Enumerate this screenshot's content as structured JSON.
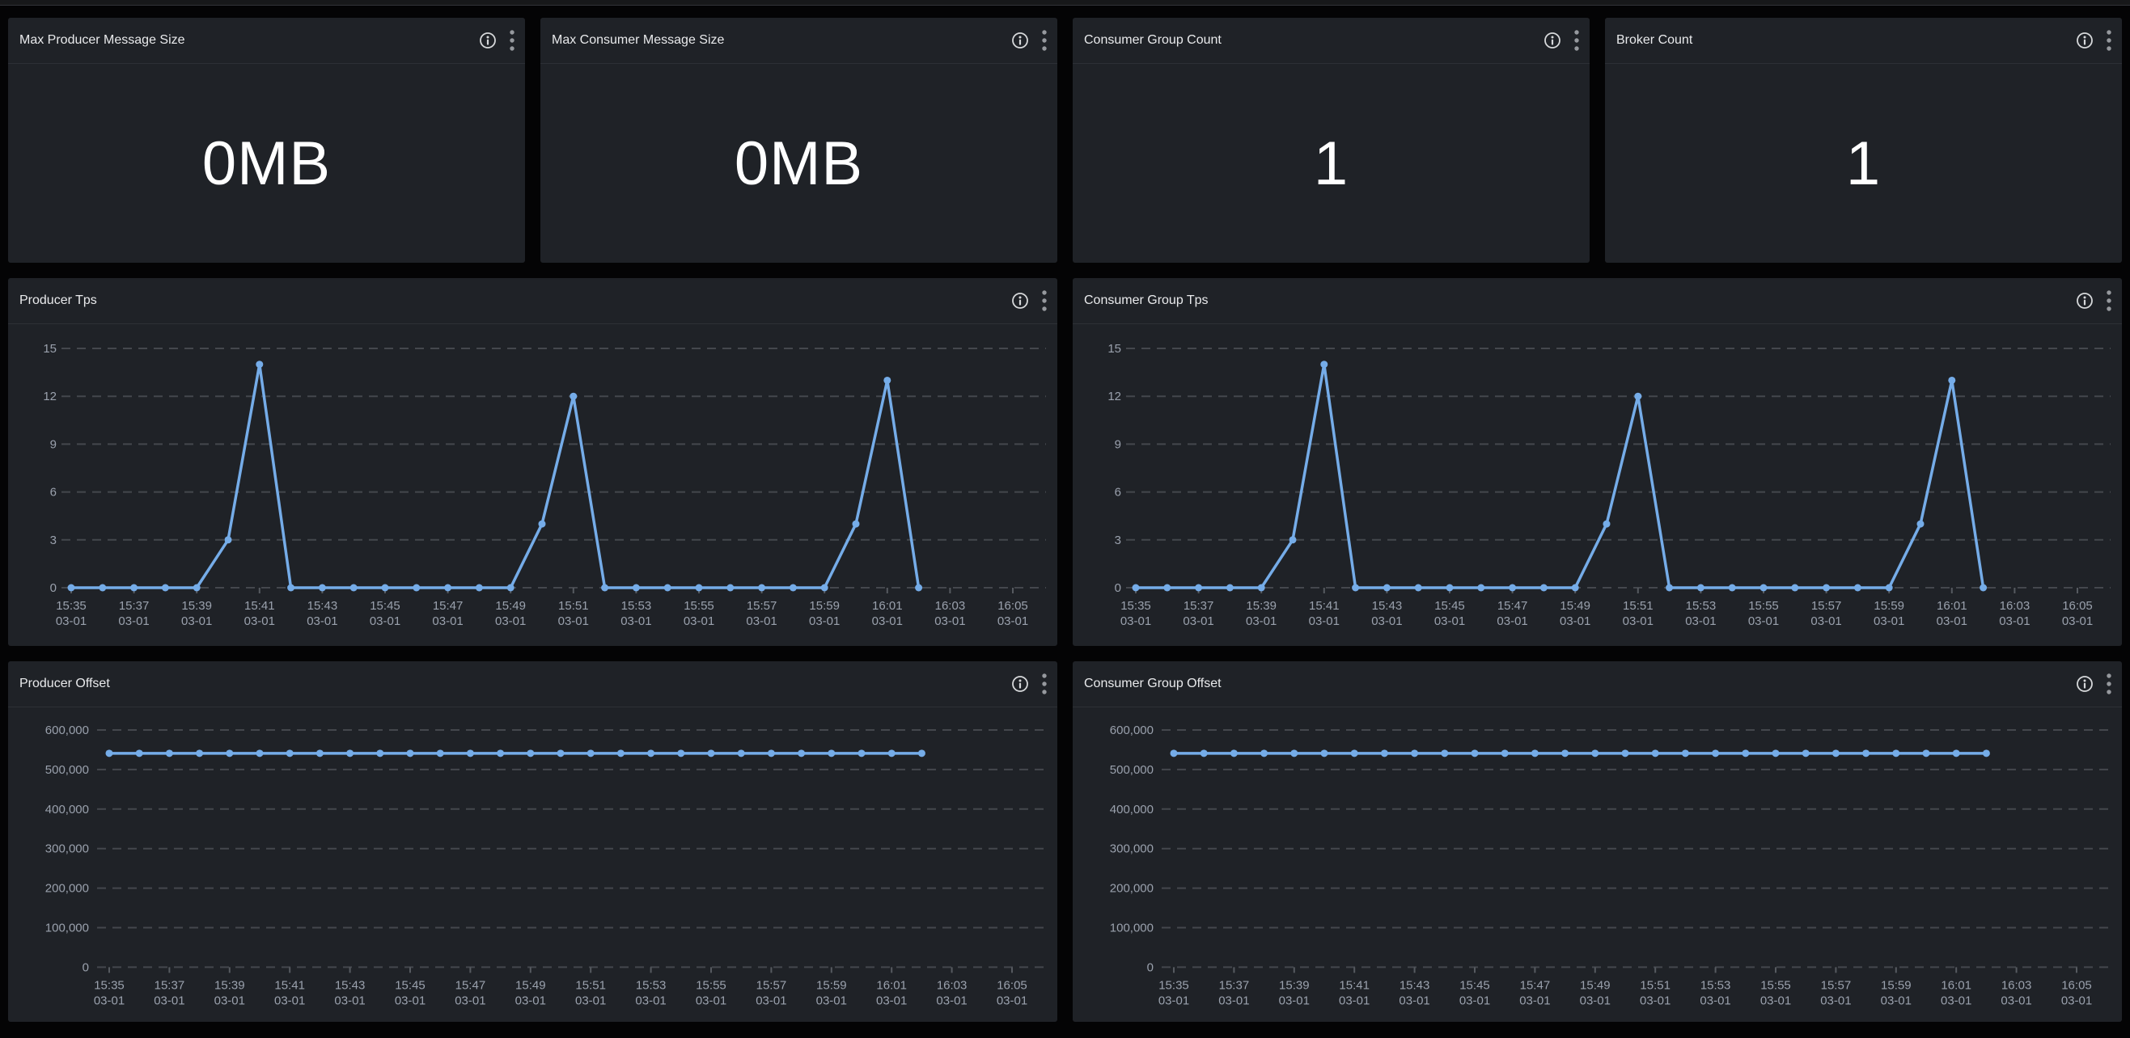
{
  "colors": {
    "page_bg": "#040405",
    "panel_bg": "#1f2227",
    "accent_line": "#75ace8",
    "grid_line": "#44474d",
    "axis_text": "#9aa1ad",
    "title_text": "#e9eaec",
    "divider": "#2d3036",
    "info_icon": "#d6d8da",
    "kebab_icon": "#96999e",
    "tick_mark": "#565a60",
    "stat_text": "#ffffff"
  },
  "stat_panels": [
    {
      "id": "max-producer-message-size",
      "title": "Max Producer Message Size",
      "value": "0MB"
    },
    {
      "id": "max-consumer-message-size",
      "title": "Max Consumer Message Size",
      "value": "0MB"
    },
    {
      "id": "consumer-group-count",
      "title": "Consumer Group Count",
      "value": "1"
    },
    {
      "id": "broker-count",
      "title": "Broker Count",
      "value": "1"
    }
  ],
  "time_axis": {
    "tick_labels": [
      "15:35",
      "15:37",
      "15:39",
      "15:41",
      "15:43",
      "15:45",
      "15:47",
      "15:49",
      "15:51",
      "15:53",
      "15:55",
      "15:57",
      "15:59",
      "16:01",
      "16:03",
      "16:05"
    ],
    "date_label": "03-01"
  },
  "sample_times": [
    "15:35",
    "15:36",
    "15:37",
    "15:38",
    "15:39",
    "15:40",
    "15:41",
    "15:42",
    "15:43",
    "15:44",
    "15:45",
    "15:46",
    "15:47",
    "15:48",
    "15:49",
    "15:50",
    "15:51",
    "15:52",
    "15:53",
    "15:54",
    "15:55",
    "15:56",
    "15:57",
    "15:58",
    "15:59",
    "16:00",
    "16:01",
    "16:02"
  ],
  "chart_data": [
    {
      "id": "producer-tps",
      "title": "Producer Tps",
      "type": "line",
      "date": "03-01",
      "yticks": [
        0,
        3,
        6,
        9,
        12,
        15
      ],
      "ytick_labels": [
        "0",
        "3",
        "6",
        "9",
        "12",
        "15"
      ],
      "ylim": [
        0,
        16.5
      ],
      "grid": "dashed-horizontal",
      "values": [
        0,
        0,
        0,
        0,
        0,
        3,
        14,
        0,
        0,
        0,
        0,
        0,
        0,
        0,
        0,
        4,
        12,
        0,
        0,
        0,
        0,
        0,
        0,
        0,
        0,
        4,
        13,
        0
      ]
    },
    {
      "id": "consumer-group-tps",
      "title": "Consumer Group Tps",
      "type": "line",
      "date": "03-01",
      "yticks": [
        0,
        3,
        6,
        9,
        12,
        15
      ],
      "ytick_labels": [
        "0",
        "3",
        "6",
        "9",
        "12",
        "15"
      ],
      "ylim": [
        0,
        16.5
      ],
      "grid": "dashed-horizontal",
      "values": [
        0,
        0,
        0,
        0,
        0,
        3,
        14,
        0,
        0,
        0,
        0,
        0,
        0,
        0,
        0,
        4,
        12,
        0,
        0,
        0,
        0,
        0,
        0,
        0,
        0,
        4,
        13,
        0
      ]
    },
    {
      "id": "producer-offset",
      "title": "Producer Offset",
      "type": "line",
      "date": "03-01",
      "yticks": [
        0,
        100000,
        200000,
        300000,
        400000,
        500000,
        600000
      ],
      "ytick_labels": [
        "0",
        "100,000",
        "200,000",
        "300,000",
        "400,000",
        "500,000",
        "600,000"
      ],
      "ylim": [
        0,
        640000
      ],
      "grid": "dashed-horizontal",
      "values": [
        541000,
        541000,
        541000,
        541000,
        541000,
        541000,
        541000,
        541000,
        541000,
        541000,
        541000,
        541000,
        541000,
        541000,
        541000,
        541000,
        541000,
        541000,
        541000,
        541000,
        541000,
        541000,
        541000,
        541000,
        541000,
        541000,
        541000,
        541000
      ]
    },
    {
      "id": "consumer-group-offset",
      "title": "Consumer Group Offset",
      "type": "line",
      "date": "03-01",
      "yticks": [
        0,
        100000,
        200000,
        300000,
        400000,
        500000,
        600000
      ],
      "ytick_labels": [
        "0",
        "100,000",
        "200,000",
        "300,000",
        "400,000",
        "500,000",
        "600,000"
      ],
      "ylim": [
        0,
        640000
      ],
      "grid": "dashed-horizontal",
      "values": [
        541000,
        541000,
        541000,
        541000,
        541000,
        541000,
        541000,
        541000,
        541000,
        541000,
        541000,
        541000,
        541000,
        541000,
        541000,
        541000,
        541000,
        541000,
        541000,
        541000,
        541000,
        541000,
        541000,
        541000,
        541000,
        541000,
        541000,
        541000
      ]
    }
  ]
}
